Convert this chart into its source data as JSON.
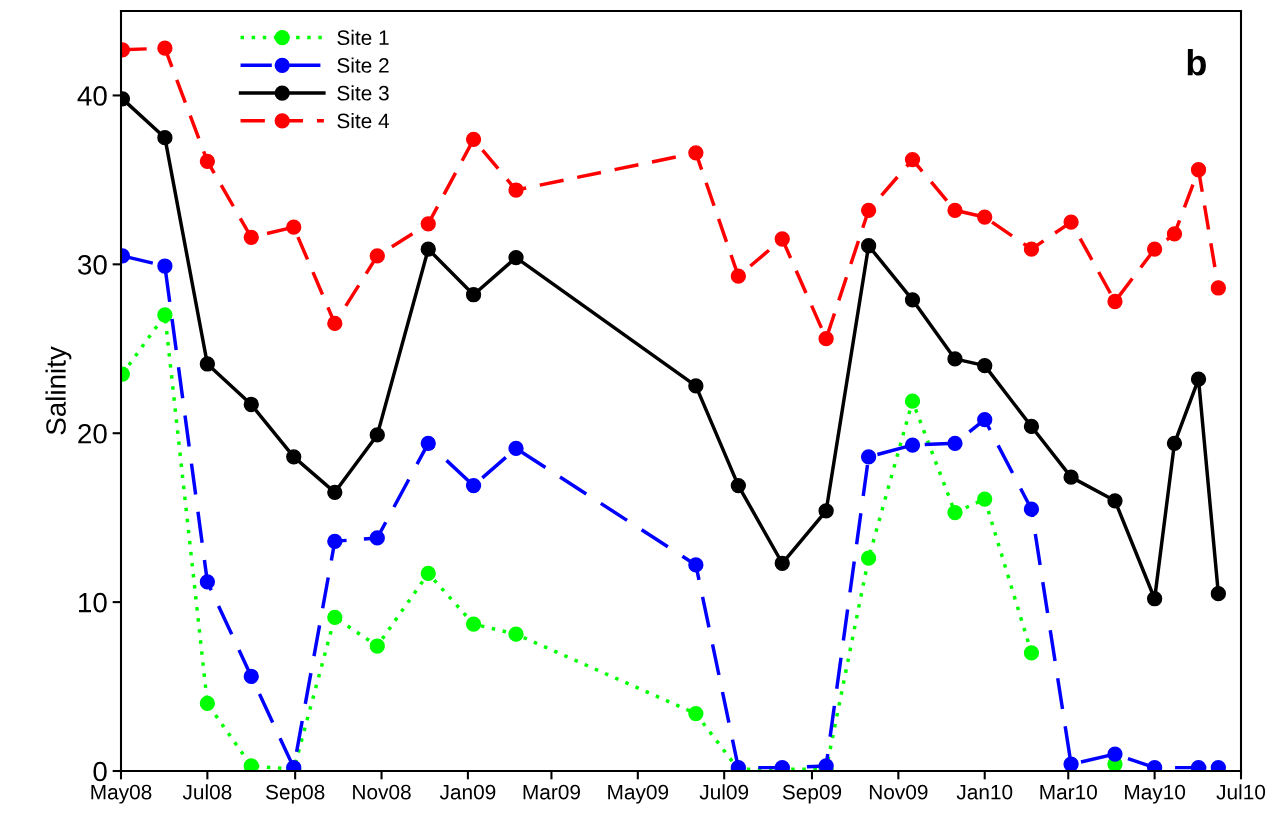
{
  "chart_data": {
    "type": "line",
    "ylabel": "Salinity",
    "annotations": [
      "b"
    ],
    "x": [
      "2008-05-02",
      "2008-06-01",
      "2008-07-01",
      "2008-08-01",
      "2008-08-31",
      "2008-09-29",
      "2008-10-29",
      "2008-12-04",
      "2009-01-05",
      "2009-02-04",
      "2009-06-11",
      "2009-07-11",
      "2009-08-11",
      "2009-09-11",
      "2009-10-11",
      "2009-11-11",
      "2009-12-11",
      "2010-01-01",
      "2010-02-03",
      "2010-03-03",
      "2010-04-03",
      "2010-05-01",
      "2010-05-15",
      "2010-06-01",
      "2010-06-15"
    ],
    "series": [
      {
        "name": "Site 1",
        "color": "#00ff00",
        "line_style": "dotted",
        "x": [
          "2008-05-02",
          "2008-06-01",
          "2008-07-01",
          "2008-08-01",
          "2008-08-31",
          "2008-09-29",
          "2008-10-29",
          "2008-12-04",
          "2009-01-05",
          "2009-02-04",
          "2009-06-11",
          "2009-07-11",
          "2009-08-11",
          "2009-09-11",
          "2009-10-11",
          "2009-11-11",
          "2009-12-11",
          "2010-01-01",
          "2010-02-03",
          "2010-03-03",
          "2010-04-03"
        ],
        "values": [
          23.5,
          27.0,
          4.0,
          0.3,
          0.1,
          9.1,
          7.4,
          11.7,
          8.7,
          8.1,
          3.4,
          0.1,
          0.1,
          0.1,
          12.6,
          21.9,
          15.3,
          16.1,
          7.0,
          null,
          0.4
        ]
      },
      {
        "name": "Site 2",
        "color": "#0000ff",
        "line_style": "dashed",
        "x": [
          "2008-05-02",
          "2008-06-01",
          "2008-07-01",
          "2008-08-01",
          "2008-08-31",
          "2008-09-29",
          "2008-10-29",
          "2008-12-04",
          "2009-01-05",
          "2009-02-04",
          "2009-06-11",
          "2009-07-11",
          "2009-08-11",
          "2009-09-11",
          "2009-10-11",
          "2009-11-11",
          "2009-12-11",
          "2010-01-01",
          "2010-02-03",
          "2010-03-03",
          "2010-04-03",
          "2010-05-01",
          "2010-06-01",
          "2010-06-15"
        ],
        "values": [
          30.5,
          29.9,
          11.2,
          5.6,
          0.2,
          13.6,
          13.8,
          19.4,
          16.9,
          19.1,
          12.2,
          0.2,
          0.2,
          0.3,
          18.6,
          19.3,
          19.4,
          20.8,
          15.5,
          0.4,
          1.0,
          0.2,
          0.2,
          0.2
        ]
      },
      {
        "name": "Site 3",
        "color": "#000000",
        "line_style": "solid",
        "values": [
          39.8,
          37.5,
          24.1,
          21.7,
          18.6,
          16.5,
          19.9,
          30.9,
          28.2,
          30.4,
          22.8,
          16.9,
          12.3,
          15.4,
          31.1,
          27.9,
          24.4,
          24.0,
          20.4,
          17.4,
          16.0,
          10.2,
          19.4,
          23.2,
          10.5
        ]
      },
      {
        "name": "Site 4",
        "color": "#ff0000",
        "line_style": "dashed",
        "values": [
          42.7,
          42.8,
          36.1,
          31.6,
          32.2,
          26.5,
          30.5,
          32.4,
          37.4,
          34.4,
          36.6,
          29.3,
          31.5,
          25.6,
          33.2,
          36.2,
          33.2,
          32.8,
          30.9,
          32.5,
          27.8,
          30.9,
          31.8,
          35.6,
          28.6
        ]
      }
    ],
    "xlim": [
      "2008-05-01",
      "2010-07-01"
    ],
    "xticks": [
      {
        "value": "2008-05-01",
        "label": "May08"
      },
      {
        "value": "2008-07-01",
        "label": "Jul08"
      },
      {
        "value": "2008-09-01",
        "label": "Sep08"
      },
      {
        "value": "2008-11-01",
        "label": "Nov08"
      },
      {
        "value": "2009-01-01",
        "label": "Jan09"
      },
      {
        "value": "2009-03-01",
        "label": "Mar09"
      },
      {
        "value": "2009-05-01",
        "label": "May09"
      },
      {
        "value": "2009-07-01",
        "label": "Jul09"
      },
      {
        "value": "2009-09-01",
        "label": "Sep09"
      },
      {
        "value": "2009-11-01",
        "label": "Nov09"
      },
      {
        "value": "2010-01-01",
        "label": "Jan10"
      },
      {
        "value": "2010-03-01",
        "label": "Mar10"
      },
      {
        "value": "2010-05-01",
        "label": "May10"
      },
      {
        "value": "2010-07-01",
        "label": "Jul10"
      }
    ],
    "ylim": [
      0,
      45
    ],
    "yticks": [
      0,
      10,
      20,
      30,
      40
    ],
    "grid": false,
    "legend": "top left",
    "marker": "circle"
  }
}
